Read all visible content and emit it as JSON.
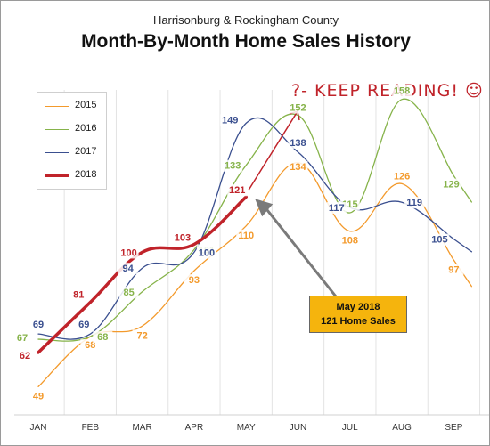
{
  "subtitle": "Harrisonburg & Rockingham County",
  "title": "Month-By-Month Home Sales History",
  "note": {
    "line1": "May 2018",
    "line2": "121 Home Sales",
    "color": "#f5b40d"
  },
  "handwritten": "?- KEEP READING! ☺",
  "chart_data": {
    "type": "line",
    "title": "Month-By-Month Home Sales History",
    "subtitle": "Harrisonburg & Rockingham County",
    "categories": [
      "JAN",
      "FEB",
      "MAR",
      "APR",
      "MAY",
      "JUN",
      "JUL",
      "AUG",
      "SEP"
    ],
    "ylim": [
      40,
      165
    ],
    "grid": {
      "vertical": true,
      "horizontal": false
    },
    "legend_position": "top-left",
    "series": [
      {
        "name": "2015",
        "color": "#f39a2c",
        "width": 1.3,
        "values": [
          49,
          68,
          72,
          93,
          110,
          134,
          108,
          126,
          97
        ]
      },
      {
        "name": "2016",
        "color": "#86b34a",
        "width": 1.3,
        "values": [
          67,
          68,
          85,
          101,
          133,
          152,
          115,
          158,
          129
        ]
      },
      {
        "name": "2017",
        "color": "#3a4f8f",
        "width": 1.3,
        "values": [
          69,
          69,
          94,
          100,
          149,
          138,
          117,
          119,
          105
        ]
      },
      {
        "name": "2018",
        "color": "#c0232a",
        "width": 3.5,
        "values": [
          62,
          81,
          100,
          103,
          121,
          null,
          null,
          null,
          null
        ]
      }
    ]
  }
}
